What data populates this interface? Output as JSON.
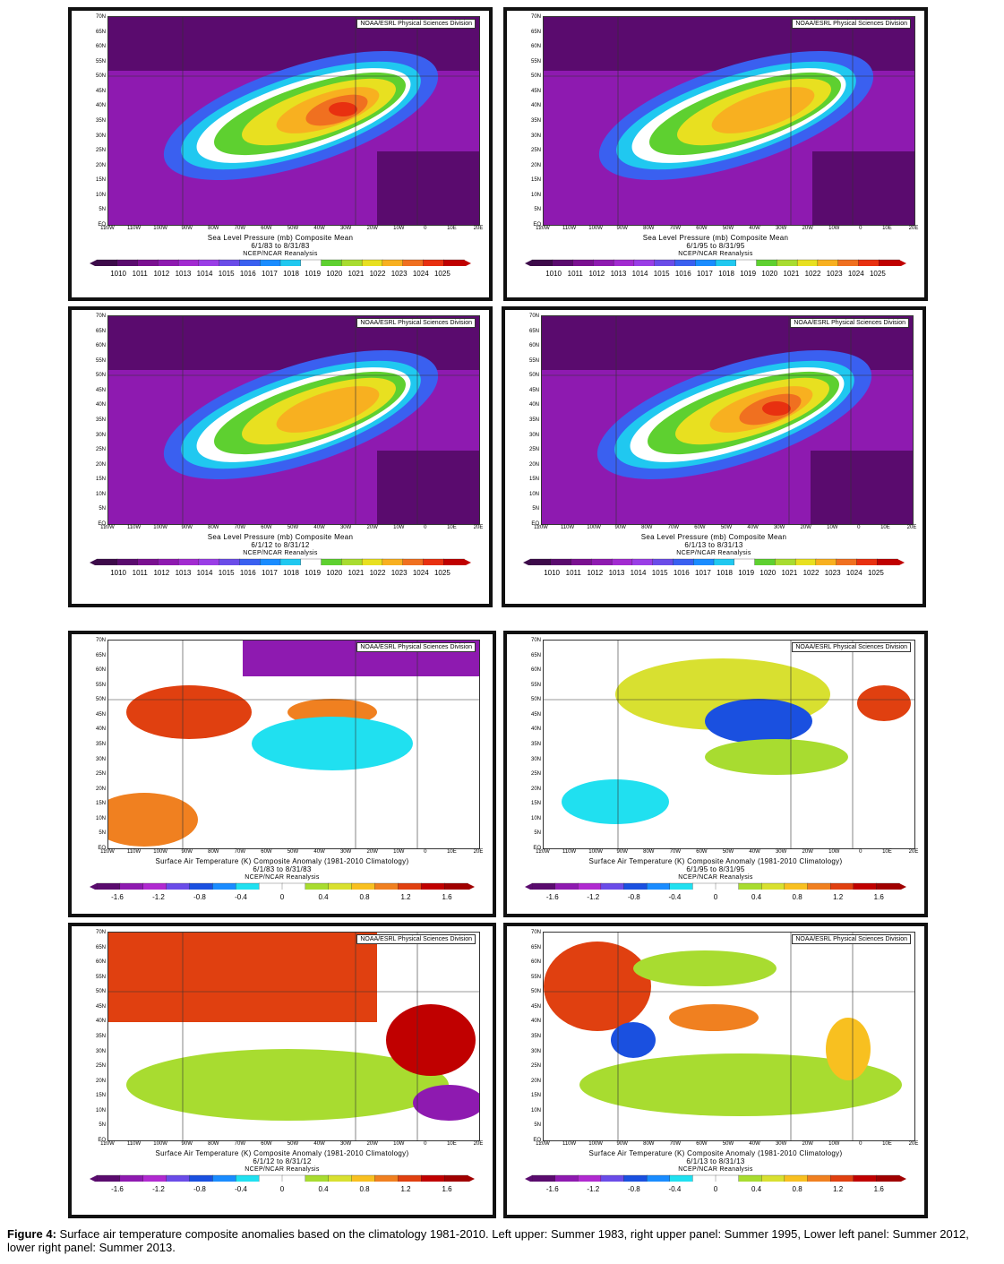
{
  "credit": "NOAA/ESRL Physical Sciences Division",
  "reanalysis": "NCEP/NCAR Reanalysis",
  "lat_labels": [
    "70N",
    "65N",
    "60N",
    "55N",
    "50N",
    "45N",
    "40N",
    "35N",
    "30N",
    "25N",
    "20N",
    "15N",
    "10N",
    "5N",
    "EQ"
  ],
  "lon_labels": [
    "120W",
    "110W",
    "100W",
    "90W",
    "80W",
    "70W",
    "60W",
    "50W",
    "40W",
    "30W",
    "20W",
    "10W",
    "0",
    "10E",
    "20E"
  ],
  "slp": {
    "title": "Sea Level Pressure (mb) Composite Mean",
    "ticks": [
      "1010",
      "1011",
      "1012",
      "1013",
      "1014",
      "1015",
      "1016",
      "1017",
      "1018",
      "1019",
      "1020",
      "1021",
      "1022",
      "1023",
      "1024",
      "1025"
    ],
    "colors": [
      "#3d0a4a",
      "#5a0b6e",
      "#7a1090",
      "#8e1ab0",
      "#a22bd0",
      "#9a3ee6",
      "#6a4ce8",
      "#3a60f0",
      "#1a8cff",
      "#20c8f0",
      "#ffffff",
      "#5ed030",
      "#a8dc30",
      "#e8e020",
      "#f8b020",
      "#f07020",
      "#e83010",
      "#c00000"
    ]
  },
  "sat": {
    "title": "Surface Air Temperature (K) Composite Anomaly (1981-2010 Climatology)",
    "ticks": [
      "-1.6",
      "-1.2",
      "-0.8",
      "-0.4",
      "0",
      "0.4",
      "0.8",
      "1.2",
      "1.6"
    ],
    "colors": [
      "#5a0b6e",
      "#8e1ab0",
      "#b02ad0",
      "#6a4ce8",
      "#1a50e0",
      "#1a8cff",
      "#20e0f0",
      "#ffffff",
      "#ffffff",
      "#a8dc30",
      "#d8e030",
      "#f8c020",
      "#f08020",
      "#e04010",
      "#c00000",
      "#a00000"
    ]
  },
  "panels": [
    {
      "kind": "slp",
      "dates": "6/1/83   to 8/31/83"
    },
    {
      "kind": "slp",
      "dates": "6/1/95   to 8/31/95"
    },
    {
      "kind": "slp",
      "dates": "6/1/12   to 8/31/12"
    },
    {
      "kind": "slp",
      "dates": "6/1/13   to 8/31/13"
    },
    {
      "kind": "sat",
      "dates": "6/1/83   to 8/31/83"
    },
    {
      "kind": "sat",
      "dates": "6/1/95   to 8/31/95"
    },
    {
      "kind": "sat",
      "dates": "6/1/12   to 8/31/12"
    },
    {
      "kind": "sat",
      "dates": "6/1/13   to 8/31/13"
    }
  ],
  "caption": {
    "label": "Figure 4:",
    "text": " Surface air temperature composite anomalies based on the climatology 1981-2010. Left upper: Summer 1983, right upper panel: Summer 1995, Lower left panel: Summer 2012, lower right panel: Summer 2013."
  }
}
